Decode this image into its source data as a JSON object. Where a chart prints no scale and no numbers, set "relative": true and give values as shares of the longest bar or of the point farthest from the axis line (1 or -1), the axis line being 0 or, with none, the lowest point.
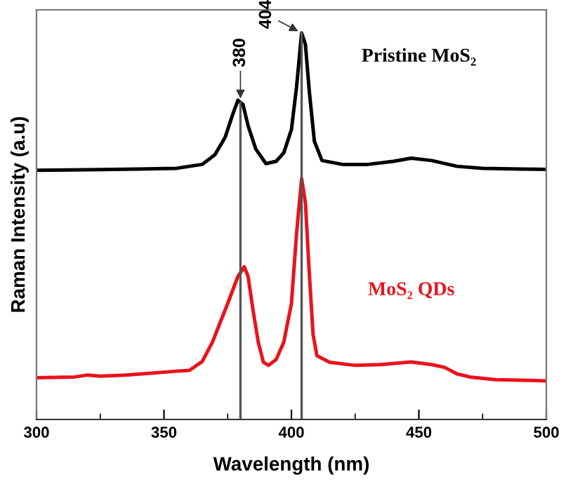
{
  "chart_data": {
    "type": "line",
    "relative": true,
    "xlabel": "Wavelength (nm)",
    "ylabel": "Raman Intensity (a.u)",
    "xlim": [
      300,
      500
    ],
    "xticks": [
      300,
      350,
      400,
      450,
      500
    ],
    "grid": false,
    "legend": false,
    "marker": "none",
    "line_style": "solid",
    "tick_labels": "x",
    "series": [
      {
        "name": "Pristine MoS₂",
        "color": "#000000",
        "x": [
          300,
          320,
          340,
          355,
          365,
          370,
          374,
          377,
          379,
          381,
          383,
          386,
          390,
          394,
          397,
          400,
          402,
          404,
          405.5,
          407,
          409,
          412,
          420,
          430,
          440,
          447,
          455,
          465,
          475,
          490,
          500
        ],
        "values": [
          0.645,
          0.646,
          0.648,
          0.65,
          0.66,
          0.685,
          0.73,
          0.79,
          0.826,
          0.815,
          0.76,
          0.7,
          0.662,
          0.668,
          0.69,
          0.75,
          0.86,
          1.0,
          0.97,
          0.85,
          0.72,
          0.67,
          0.66,
          0.66,
          0.668,
          0.676,
          0.67,
          0.655,
          0.65,
          0.648,
          0.647
        ]
      },
      {
        "name": "MoS₂ QDs",
        "color": "#e8141c",
        "x": [
          300,
          315,
          320,
          325,
          335,
          345,
          355,
          360,
          365,
          369,
          372,
          375,
          379,
          381.5,
          383,
          385,
          387,
          389,
          391,
          394,
          397,
          400,
          402,
          404,
          405.5,
          407,
          408.5,
          410,
          415,
          425,
          435,
          447,
          455,
          460,
          465,
          470,
          480,
          500
        ],
        "values": [
          0.108,
          0.11,
          0.115,
          0.112,
          0.115,
          0.12,
          0.125,
          0.127,
          0.15,
          0.2,
          0.25,
          0.3,
          0.37,
          0.395,
          0.37,
          0.28,
          0.2,
          0.148,
          0.14,
          0.155,
          0.2,
          0.3,
          0.48,
          0.623,
          0.56,
          0.38,
          0.22,
          0.165,
          0.148,
          0.14,
          0.142,
          0.149,
          0.142,
          0.135,
          0.118,
          0.11,
          0.103,
          0.1
        ]
      }
    ],
    "ref_lines": [
      {
        "axis": "x",
        "value": 380,
        "label": "380",
        "color": "#555555"
      },
      {
        "axis": "x",
        "value": 404,
        "label": "404",
        "color": "#555555"
      }
    ]
  }
}
